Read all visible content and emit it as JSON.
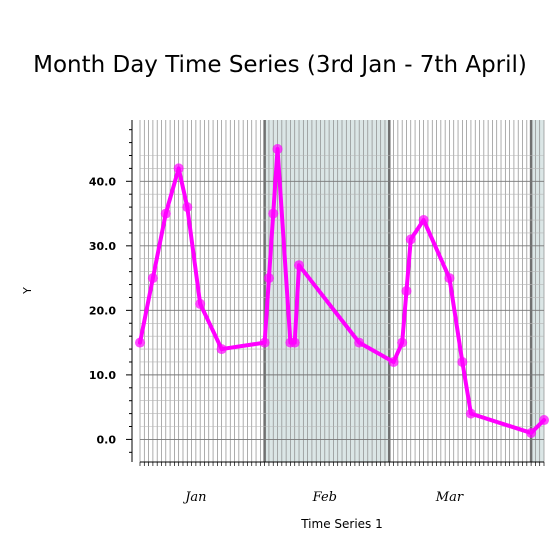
{
  "chart_data": {
    "type": "line",
    "title": "Month Day Time Series (3rd Jan - 7th April)",
    "xlabel": "Time Series 1",
    "ylabel": "Y",
    "x_range": [
      "2014-01-03",
      "2014-04-07"
    ],
    "ylim": [
      -3.5,
      49.5
    ],
    "y_ticks": [
      "0.0",
      "10.0",
      "20.0",
      "30.0",
      "40.0"
    ],
    "y_tick_values": [
      0,
      10,
      20,
      30,
      40
    ],
    "month_labels": [
      {
        "label": "Jan",
        "center": "2014-01-16"
      },
      {
        "label": "Feb",
        "center": "2014-02-15"
      },
      {
        "label": "Mar",
        "center": "2014-03-16"
      }
    ],
    "shaded_bands": [
      {
        "start": "2014-02-01",
        "end": "2014-03-02"
      },
      {
        "start": "2014-04-04",
        "end": "2014-04-07"
      }
    ],
    "grid": true,
    "series": [
      {
        "color": "#ff00ff",
        "x": [
          "2014-01-03",
          "2014-01-06",
          "2014-01-09",
          "2014-01-12",
          "2014-01-14",
          "2014-01-17",
          "2014-01-22",
          "2014-02-01",
          "2014-02-02",
          "2014-02-03",
          "2014-02-04",
          "2014-02-07",
          "2014-02-08",
          "2014-02-09",
          "2014-02-23",
          "2014-03-03",
          "2014-03-05",
          "2014-03-06",
          "2014-03-07",
          "2014-03-10",
          "2014-03-16",
          "2014-03-19",
          "2014-03-21",
          "2014-04-04",
          "2014-04-07"
        ],
        "y": [
          15,
          25,
          35,
          42,
          36,
          21,
          14,
          15,
          25,
          35,
          45,
          15,
          15,
          27,
          15,
          12,
          15,
          23,
          31,
          34,
          25,
          12,
          4,
          1,
          3
        ]
      }
    ]
  }
}
